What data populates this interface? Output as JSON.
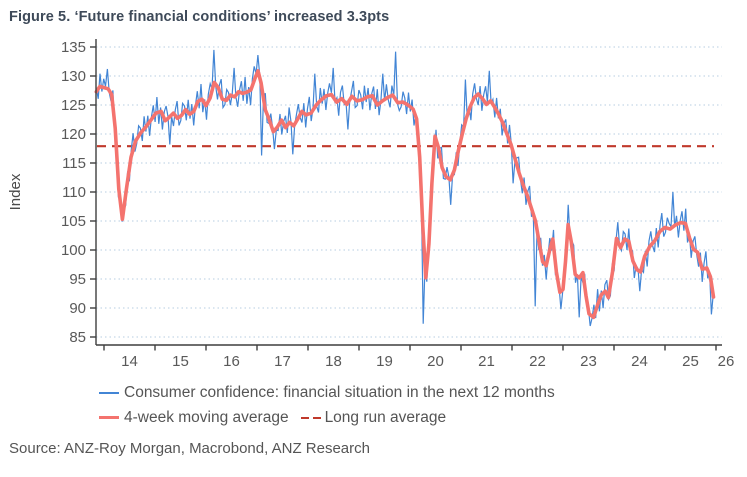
{
  "figure": {
    "title": "Figure 5. ‘Future financial conditions’ increased 3.3pts"
  },
  "source": "Source: ANZ-Roy Morgan, Macrobond, ANZ Research",
  "colors": {
    "title": "#3e4a59",
    "weekly_line": "#4285d5",
    "moving_average_line": "#f4736e",
    "long_run_average_line": "#c0392b",
    "gridline": "#b7cee2",
    "axis": "#3f3f3f",
    "tick_text": "#595959"
  },
  "chart_data": {
    "type": "line",
    "title": "Figure 5. ‘Future financial conditions’ increased 3.3pts",
    "xlabel": "",
    "ylabel": "Index",
    "ylim": [
      85,
      135
    ],
    "yticks": [
      85,
      90,
      95,
      100,
      105,
      110,
      115,
      120,
      125,
      130,
      135
    ],
    "xticks": {
      "years": [
        2014,
        2015,
        2016,
        2017,
        2018,
        2019,
        2020,
        2021,
        2022,
        2023,
        2024,
        2025,
        2026
      ],
      "labels": [
        "14",
        "15",
        "16",
        "17",
        "18",
        "19",
        "20",
        "21",
        "22",
        "23",
        "24",
        "25",
        "26"
      ]
    },
    "grid": "horizontal-dotted",
    "legend_position": "bottom-left",
    "long_run_average": {
      "label": "Long run average",
      "value": 117.9,
      "color": "#c0392b",
      "style": "dashed"
    },
    "moving_average": {
      "label": "4-week moving average",
      "color": "#f4736e",
      "points": [
        [
          2013.85,
          127.3
        ],
        [
          2013.92,
          128.2
        ],
        [
          2014.0,
          128.0
        ],
        [
          2014.08,
          127.8
        ],
        [
          2014.15,
          126.8
        ],
        [
          2014.22,
          121.0
        ],
        [
          2014.29,
          110.5
        ],
        [
          2014.36,
          105.3
        ],
        [
          2014.44,
          110.5
        ],
        [
          2014.53,
          116.0
        ],
        [
          2014.62,
          118.8
        ],
        [
          2014.72,
          120.2
        ],
        [
          2014.82,
          121.2
        ],
        [
          2014.92,
          122.4
        ],
        [
          2015.02,
          123.6
        ],
        [
          2015.12,
          123.9
        ],
        [
          2015.2,
          122.3
        ],
        [
          2015.28,
          122.9
        ],
        [
          2015.36,
          123.6
        ],
        [
          2015.44,
          122.7
        ],
        [
          2015.52,
          123.2
        ],
        [
          2015.6,
          124.2
        ],
        [
          2015.68,
          123.4
        ],
        [
          2015.76,
          123.9
        ],
        [
          2015.84,
          125.6
        ],
        [
          2015.92,
          126.0
        ],
        [
          2016.0,
          124.9
        ],
        [
          2016.08,
          126.2
        ],
        [
          2016.16,
          128.9
        ],
        [
          2016.24,
          128.0
        ],
        [
          2016.32,
          126.0
        ],
        [
          2016.4,
          125.8
        ],
        [
          2016.48,
          126.7
        ],
        [
          2016.56,
          126.4
        ],
        [
          2016.64,
          127.3
        ],
        [
          2016.72,
          127.0
        ],
        [
          2016.8,
          127.2
        ],
        [
          2016.88,
          127.6
        ],
        [
          2016.96,
          129.6
        ],
        [
          2017.02,
          130.9
        ],
        [
          2017.08,
          128.8
        ],
        [
          2017.16,
          124.2
        ],
        [
          2017.24,
          122.5
        ],
        [
          2017.32,
          120.4
        ],
        [
          2017.4,
          121.2
        ],
        [
          2017.48,
          122.4
        ],
        [
          2017.56,
          121.1
        ],
        [
          2017.64,
          122.0
        ],
        [
          2017.72,
          121.4
        ],
        [
          2017.8,
          122.6
        ],
        [
          2017.88,
          123.9
        ],
        [
          2017.96,
          123.3
        ],
        [
          2018.06,
          123.6
        ],
        [
          2018.16,
          125.0
        ],
        [
          2018.26,
          125.9
        ],
        [
          2018.36,
          126.6
        ],
        [
          2018.46,
          126.8
        ],
        [
          2018.56,
          125.5
        ],
        [
          2018.66,
          126.1
        ],
        [
          2018.76,
          125.1
        ],
        [
          2018.86,
          126.5
        ],
        [
          2018.96,
          125.7
        ],
        [
          2019.06,
          125.9
        ],
        [
          2019.16,
          126.4
        ],
        [
          2019.26,
          126.6
        ],
        [
          2019.36,
          125.0
        ],
        [
          2019.46,
          125.7
        ],
        [
          2019.56,
          126.3
        ],
        [
          2019.66,
          126.7
        ],
        [
          2019.76,
          125.4
        ],
        [
          2019.86,
          125.5
        ],
        [
          2019.96,
          125.0
        ],
        [
          2020.06,
          124.3
        ],
        [
          2020.13,
          122.6
        ],
        [
          2020.19,
          116.0
        ],
        [
          2020.25,
          104.0
        ],
        [
          2020.31,
          95.2
        ],
        [
          2020.37,
          101.0
        ],
        [
          2020.43,
          111.5
        ],
        [
          2020.49,
          119.6
        ],
        [
          2020.56,
          117.6
        ],
        [
          2020.63,
          114.2
        ],
        [
          2020.71,
          112.6
        ],
        [
          2020.79,
          112.1
        ],
        [
          2020.87,
          113.8
        ],
        [
          2020.94,
          116.8
        ],
        [
          2021.02,
          119.8
        ],
        [
          2021.1,
          122.6
        ],
        [
          2021.18,
          124.7
        ],
        [
          2021.26,
          126.3
        ],
        [
          2021.34,
          126.9
        ],
        [
          2021.42,
          126.1
        ],
        [
          2021.5,
          125.1
        ],
        [
          2021.58,
          125.7
        ],
        [
          2021.66,
          124.6
        ],
        [
          2021.74,
          123.4
        ],
        [
          2021.82,
          121.9
        ],
        [
          2021.9,
          120.0
        ],
        [
          2021.98,
          118.2
        ],
        [
          2022.06,
          115.7
        ],
        [
          2022.14,
          113.3
        ],
        [
          2022.22,
          111.2
        ],
        [
          2022.3,
          109.4
        ],
        [
          2022.38,
          107.2
        ],
        [
          2022.46,
          105.0
        ],
        [
          2022.54,
          101.0
        ],
        [
          2022.6,
          98.0
        ],
        [
          2022.67,
          97.3
        ],
        [
          2022.74,
          100.0
        ],
        [
          2022.8,
          101.9
        ],
        [
          2022.87,
          96.2
        ],
        [
          2022.94,
          92.7
        ],
        [
          2023.0,
          93.2
        ],
        [
          2023.05,
          98.0
        ],
        [
          2023.1,
          104.4
        ],
        [
          2023.16,
          101.5
        ],
        [
          2023.24,
          95.8
        ],
        [
          2023.32,
          95.2
        ],
        [
          2023.39,
          96.1
        ],
        [
          2023.45,
          92.1
        ],
        [
          2023.51,
          89.0
        ],
        [
          2023.6,
          88.4
        ],
        [
          2023.68,
          90.6
        ],
        [
          2023.75,
          92.3
        ],
        [
          2023.83,
          92.9
        ],
        [
          2023.89,
          91.8
        ],
        [
          2023.97,
          96.2
        ],
        [
          2024.05,
          102.0
        ],
        [
          2024.13,
          100.4
        ],
        [
          2024.21,
          101.9
        ],
        [
          2024.29,
          101.5
        ],
        [
          2024.37,
          98.1
        ],
        [
          2024.45,
          96.6
        ],
        [
          2024.52,
          96.2
        ],
        [
          2024.6,
          98.9
        ],
        [
          2024.7,
          100.6
        ],
        [
          2024.8,
          101.6
        ],
        [
          2024.9,
          103.2
        ],
        [
          2025.0,
          103.9
        ],
        [
          2025.1,
          103.6
        ],
        [
          2025.2,
          104.3
        ],
        [
          2025.3,
          104.7
        ],
        [
          2025.4,
          104.6
        ],
        [
          2025.48,
          102.1
        ],
        [
          2025.56,
          100.1
        ],
        [
          2025.64,
          99.6
        ],
        [
          2025.73,
          96.7
        ],
        [
          2025.82,
          96.9
        ],
        [
          2025.89,
          95.4
        ],
        [
          2025.95,
          91.9
        ]
      ]
    },
    "weekly": {
      "label": "Consumer confidence: financial situation in the next 12 months",
      "color": "#4285d5",
      "start_year": 2013.85,
      "end_year": 2025.95,
      "step_years": 0.036,
      "start_value": 128.0,
      "end_value": 92.3,
      "noise_pattern": [
        0.9,
        -1.7,
        2.2,
        -0.8,
        1.5,
        -2.4,
        0.4,
        2.0,
        -1.3,
        2.7,
        -2.0,
        0.7,
        -2.6,
        1.2,
        2.4,
        -0.5,
        -1.9,
        1.7,
        -2.2,
        1.0,
        2.9,
        -1.4,
        -0.8,
        1.8
      ],
      "spikes": [
        [
          2014.06,
          131.2
        ],
        [
          2016.16,
          134.5
        ],
        [
          2016.55,
          131.4
        ],
        [
          2017.02,
          133.6
        ],
        [
          2018.14,
          130.4
        ],
        [
          2018.48,
          131.4
        ],
        [
          2019.45,
          130.4
        ],
        [
          2019.7,
          134.2
        ],
        [
          2021.1,
          129.4
        ],
        [
          2021.57,
          130.9
        ],
        [
          2023.12,
          107.8
        ],
        [
          2024.06,
          104.8
        ],
        [
          2025.14,
          110.0
        ]
      ],
      "dips": [
        [
          2014.36,
          104.9
        ],
        [
          2015.3,
          118.2
        ],
        [
          2017.1,
          116.3
        ],
        [
          2017.36,
          117.4
        ],
        [
          2017.7,
          116.5
        ],
        [
          2018.78,
          120.8
        ],
        [
          2020.27,
          87.3
        ],
        [
          2020.8,
          107.8
        ],
        [
          2022.02,
          111.5
        ],
        [
          2022.46,
          90.3
        ],
        [
          2022.95,
          89.8
        ],
        [
          2023.3,
          88.4
        ],
        [
          2023.52,
          86.9
        ],
        [
          2024.5,
          92.9
        ],
        [
          2025.9,
          88.9
        ]
      ]
    }
  }
}
